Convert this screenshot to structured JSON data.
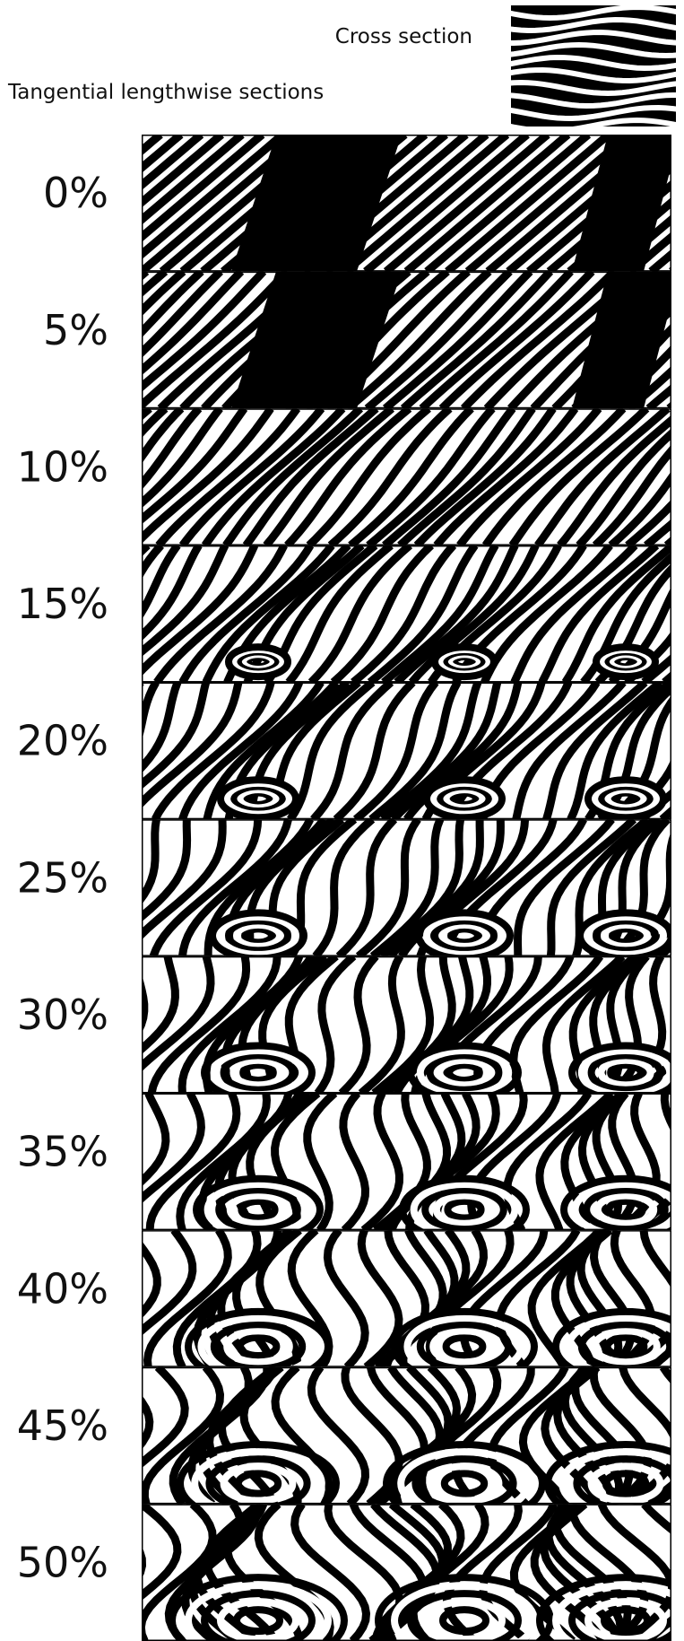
{
  "header": {
    "cross_section": "Cross section",
    "tangential": "Tangential lengthwise sections"
  },
  "sections": [
    "0%",
    "5%",
    "10%",
    "15%",
    "20%",
    "25%",
    "30%",
    "35%",
    "40%",
    "45%",
    "50%"
  ]
}
